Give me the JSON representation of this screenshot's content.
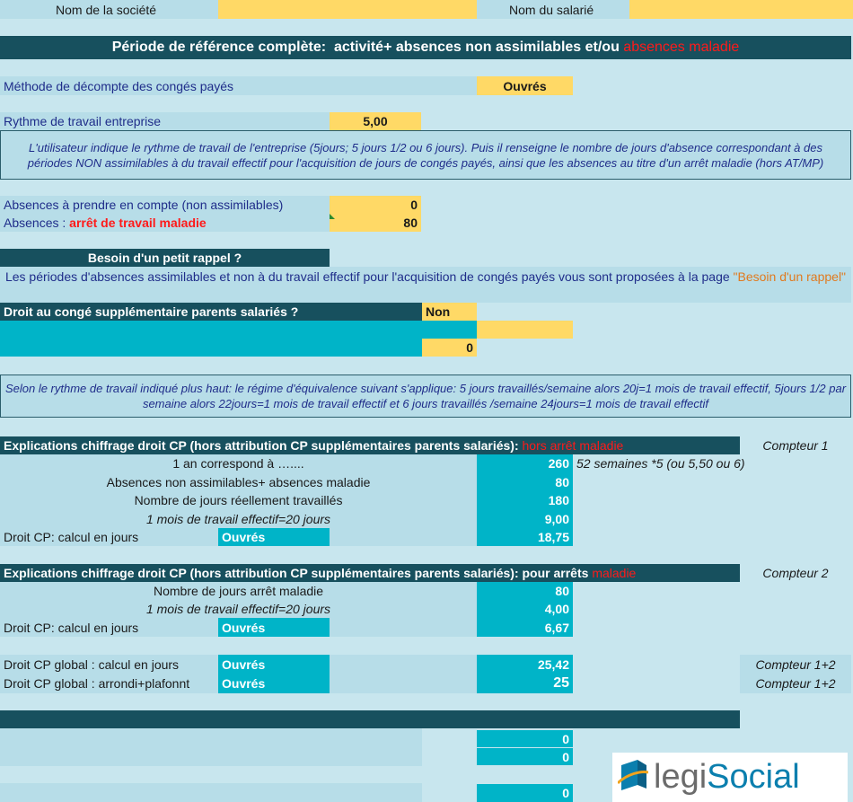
{
  "header": {
    "company_label": "Nom de la société",
    "employee_label": "Nom du salarié"
  },
  "banner": {
    "title": "Période de référence complète:  activité+ absences non assimilables et/ou ",
    "title_red": "absences maladie"
  },
  "method": {
    "label": "Méthode de décompte des congés payés",
    "value": "Ouvrés"
  },
  "rhythm": {
    "label": "Rythme de travail entreprise",
    "value": "5,00"
  },
  "note1": "L'utilisateur indique le rythme de travail de l'entreprise (5jours; 5 jours 1/2 ou 6 jours).  Puis il renseigne le nombre de jours d'absence correspondant à des périodes NON assimilables à du travail effectif pour l'acquisition de jours de congés payés, ainsi que les absences au titre d'un arrêt maladie (hors AT/MP)",
  "absences": {
    "non_assim_label": "Absences à prendre en compte (non assimilables)",
    "non_assim_value": "0",
    "sick_label_prefix": "Absences : ",
    "sick_label_red": "arrêt de travail maladie",
    "sick_value": "80"
  },
  "reminder": {
    "title": "Besoin d'un petit rappel ?",
    "text": "Les périodes d'absences assimilables et non  à du travail effectif pour l'acquisition de congés payés vous sont proposées à la page ",
    "link": "\"Besoin d'un rappel\""
  },
  "parents": {
    "question": "Droit au congé supplémentaire parents salariés ?",
    "answer": "Non",
    "value": "0"
  },
  "note2": "Selon le rythme de travail indiqué plus haut: le régime d'équivalence suivant s'applique: 5 jours travaillés/semaine alors 20j=1 mois de travail effectif, 5jours 1/2 par semaine alors 22jours=1 mois de travail effectif et 6 jours travaillés /semaine 24jours=1 mois de travail effectif",
  "section1": {
    "title": "Explications chiffrage droit CP (hors attribution CP supplémentaires parents salariés): ",
    "title_red": "hors arrêt maladie",
    "counter": "Compteur 1",
    "rows": [
      {
        "label": "1 an correspond à …....",
        "value": "260",
        "note": "52 semaines *5 (ou 5,50 ou 6)"
      },
      {
        "label": "Absences non assimilables+ absences maladie",
        "value": "80"
      },
      {
        "label": "Nombre de jours réellement travaillés",
        "value": "180"
      },
      {
        "label": "1 mois de travail effectif=20 jours",
        "value": "9,00"
      }
    ],
    "result_label": "Droit CP: calcul en jours",
    "result_method": "Ouvrés",
    "result_value": "18,75"
  },
  "section2": {
    "title": "Explications chiffrage droit CP (hors attribution CP supplémentaires parents salariés): pour arrêts ",
    "title_red": "maladie",
    "counter": "Compteur 2",
    "rows": [
      {
        "label": "Nombre de jours arrêt maladie",
        "value": "80"
      },
      {
        "label": "1 mois de travail effectif=20 jours",
        "value": "4,00"
      }
    ],
    "result_label": "Droit CP: calcul en jours",
    "result_method": "Ouvrés",
    "result_value": "6,67"
  },
  "global": {
    "row1_label": "Droit CP global : calcul en jours",
    "row1_method": "Ouvrés",
    "row1_value": "25,42",
    "row1_counter": "Compteur 1+2",
    "row2_label": "Droit CP global : arrondi+plafonnt",
    "row2_method": "Ouvrés",
    "row2_value": "25",
    "row2_counter": "Compteur 1+2"
  },
  "bottom": {
    "v1": "0",
    "v2": "0",
    "v3": "0"
  },
  "logo": {
    "part1": "legi",
    "part2": "Social"
  },
  "colors": {
    "light": "#b7dde8",
    "yellow": "#ffd966",
    "teal": "#00b4c8",
    "dark": "#17505e",
    "red": "#ff1a1a"
  }
}
